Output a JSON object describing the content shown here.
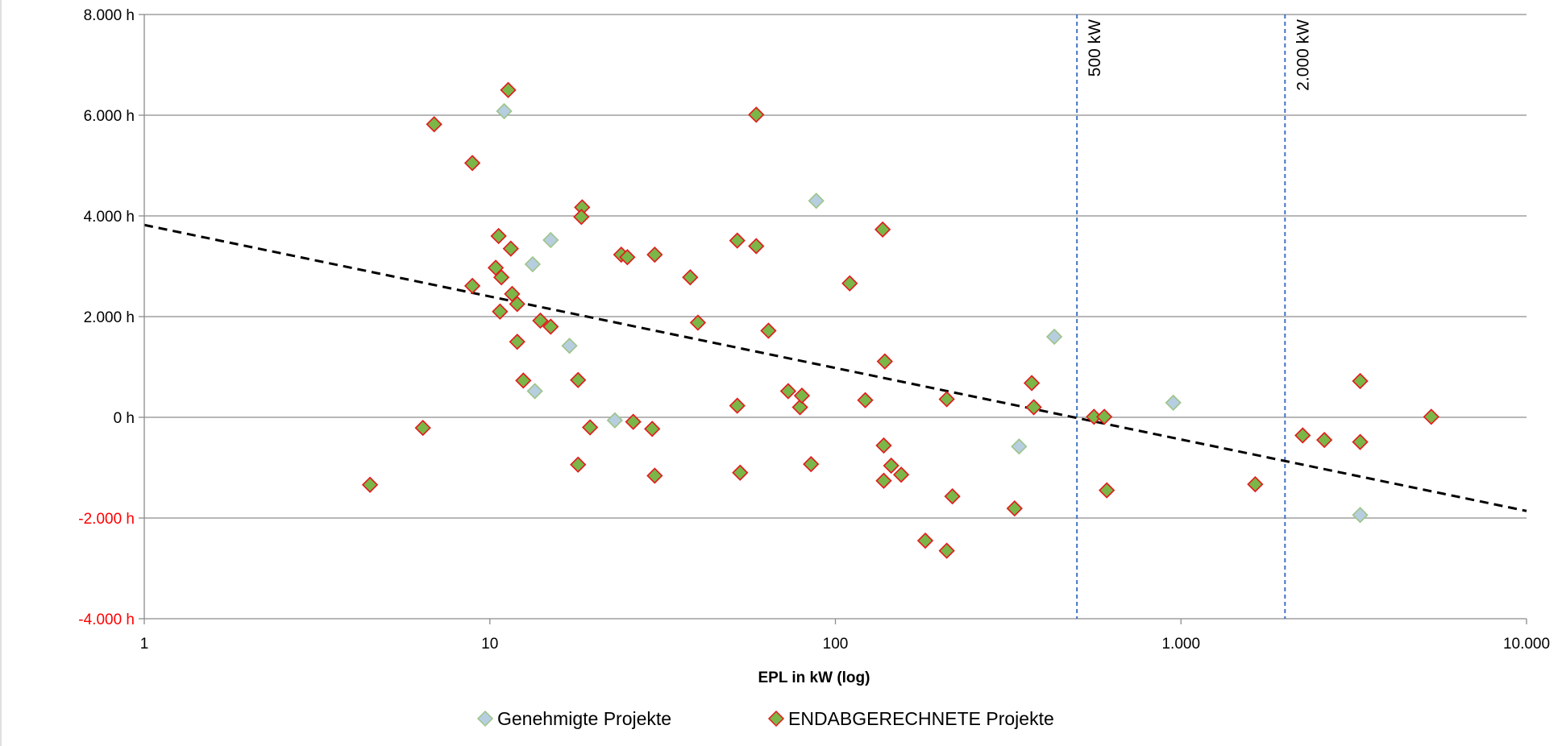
{
  "chart_data": {
    "type": "scatter",
    "xscale": "log",
    "xlim": [
      1,
      10000
    ],
    "ylim": [
      -4000,
      8000
    ],
    "xlabel": "EPL in kW (log)",
    "ylabel": "",
    "grid": true,
    "legend_position": "bottom",
    "x_ticks": [
      {
        "value": 1,
        "label": "1"
      },
      {
        "value": 10,
        "label": "10"
      },
      {
        "value": 100,
        "label": "100"
      },
      {
        "value": 1000,
        "label": "1.000"
      },
      {
        "value": 10000,
        "label": "10.000"
      }
    ],
    "y_ticks": [
      {
        "value": 8000,
        "label": "8.000 h",
        "color": "#000000"
      },
      {
        "value": 6000,
        "label": "6.000 h",
        "color": "#000000"
      },
      {
        "value": 4000,
        "label": "4.000 h",
        "color": "#000000"
      },
      {
        "value": 2000,
        "label": "2.000 h",
        "color": "#000000"
      },
      {
        "value": 0,
        "label": "0 h",
        "color": "#000000"
      },
      {
        "value": -2000,
        "label": "-2.000 h",
        "color": "#ff0000"
      },
      {
        "value": -4000,
        "label": "-4.000 h",
        "color": "#ff0000"
      }
    ],
    "reference_lines": [
      {
        "x": 500,
        "label": "500 kW",
        "color": "#4472c4"
      },
      {
        "x": 2000,
        "label": "2.000 kW",
        "color": "#4472c4"
      }
    ],
    "trendline": {
      "from": [
        1,
        3820
      ],
      "to": [
        10000,
        -1860
      ],
      "color": "#000000"
    },
    "series": [
      {
        "name": "Genehmigte Projekte",
        "fill": "#b7cee0",
        "stroke": "#9ec48a",
        "points": [
          [
            11.0,
            6080
          ],
          [
            13.3,
            3040
          ],
          [
            15.0,
            3520
          ],
          [
            13.5,
            520
          ],
          [
            17.0,
            1420
          ],
          [
            23.0,
            -60
          ],
          [
            88.0,
            4300
          ],
          [
            340,
            -580
          ],
          [
            430,
            1600
          ],
          [
            950,
            290
          ],
          [
            3300,
            -1940
          ]
        ]
      },
      {
        "name": "ENDABGERECHNETE Projekte",
        "fill": "#7ab648",
        "stroke": "#e31a1c",
        "points": [
          [
            11.3,
            6500
          ],
          [
            6.9,
            5820
          ],
          [
            8.9,
            5050
          ],
          [
            18.5,
            4170
          ],
          [
            18.4,
            3980
          ],
          [
            10.6,
            3600
          ],
          [
            11.5,
            3350
          ],
          [
            10.4,
            2970
          ],
          [
            10.8,
            2780
          ],
          [
            8.9,
            2610
          ],
          [
            11.6,
            2450
          ],
          [
            12.0,
            2250
          ],
          [
            10.7,
            2100
          ],
          [
            14.0,
            1920
          ],
          [
            15.0,
            1800
          ],
          [
            12.0,
            1500
          ],
          [
            12.5,
            730
          ],
          [
            18.0,
            740
          ],
          [
            19.5,
            -200
          ],
          [
            18.0,
            -940
          ],
          [
            6.4,
            -210
          ],
          [
            4.5,
            -1340
          ],
          [
            24.0,
            3230
          ],
          [
            25.0,
            3180
          ],
          [
            30.0,
            3230
          ],
          [
            26.0,
            -90
          ],
          [
            29.5,
            -230
          ],
          [
            30.0,
            -1160
          ],
          [
            38.0,
            2780
          ],
          [
            40.0,
            1880
          ],
          [
            52.0,
            3510
          ],
          [
            59.0,
            3400
          ],
          [
            59.0,
            6010
          ],
          [
            64.0,
            1720
          ],
          [
            52.0,
            230
          ],
          [
            53.0,
            -1100
          ],
          [
            73.0,
            520
          ],
          [
            79.0,
            200
          ],
          [
            80.0,
            430
          ],
          [
            85.0,
            -930
          ],
          [
            110,
            2660
          ],
          [
            122,
            340
          ],
          [
            137,
            3730
          ],
          [
            139,
            1110
          ],
          [
            138,
            -560
          ],
          [
            138,
            -1260
          ],
          [
            145,
            -960
          ],
          [
            155,
            -1140
          ],
          [
            182,
            -2450
          ],
          [
            210,
            360
          ],
          [
            210,
            -2650
          ],
          [
            218,
            -1570
          ],
          [
            330,
            -1810
          ],
          [
            370,
            680
          ],
          [
            375,
            200
          ],
          [
            560,
            10
          ],
          [
            600,
            10
          ],
          [
            610,
            -1450
          ],
          [
            1640,
            -1330
          ],
          [
            2250,
            -360
          ],
          [
            2600,
            -450
          ],
          [
            3300,
            720
          ],
          [
            3300,
            -490
          ],
          [
            5300,
            10
          ]
        ]
      }
    ]
  }
}
